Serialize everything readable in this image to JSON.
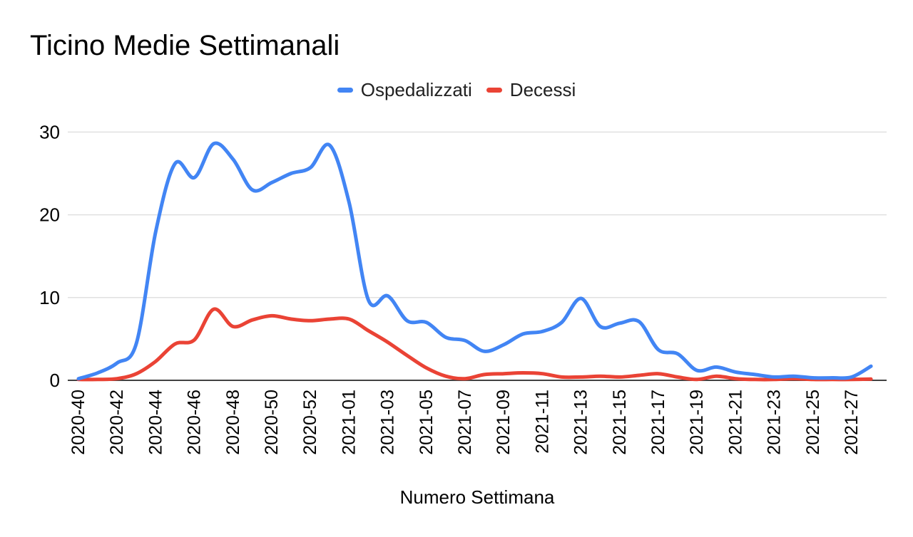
{
  "title": "Ticino Medie Settimanali",
  "x_axis_title": "Numero Settimana",
  "legend": [
    {
      "label": "Ospedalizzati",
      "color": "#4285F4"
    },
    {
      "label": "Decessi",
      "color": "#EA4335"
    }
  ],
  "colors": {
    "background": "#ffffff",
    "gridline": "#e0e0e0",
    "axis_line": "#424242",
    "text": "#000000"
  },
  "chart_data": {
    "type": "line",
    "smooth": true,
    "title": "Ticino Medie Settimanali",
    "xlabel": "Numero Settimana",
    "ylabel": "",
    "ylim": [
      0,
      30
    ],
    "grid": true,
    "legend_position": "top",
    "yticks": [
      0,
      10,
      20,
      30
    ],
    "x_tick_labels": [
      "2020-40",
      "2020-42",
      "2020-44",
      "2020-46",
      "2020-48",
      "2020-50",
      "2020-52",
      "2021-01",
      "2021-03",
      "2021-05",
      "2021-07",
      "2021-09",
      "2021-11",
      "2021-13",
      "2021-15",
      "2021-17",
      "2021-19",
      "2021-21",
      "2021-23",
      "2021-25",
      "2021-27"
    ],
    "categories": [
      "2020-40",
      "2020-41",
      "2020-42",
      "2020-43",
      "2020-44",
      "2020-45",
      "2020-46",
      "2020-47",
      "2020-48",
      "2020-49",
      "2020-50",
      "2020-51",
      "2020-52",
      "2020-53",
      "2021-01",
      "2021-02",
      "2021-03",
      "2021-04",
      "2021-05",
      "2021-06",
      "2021-07",
      "2021-08",
      "2021-09",
      "2021-10",
      "2021-11",
      "2021-12",
      "2021-13",
      "2021-14",
      "2021-15",
      "2021-16",
      "2021-17",
      "2021-18",
      "2021-19",
      "2021-20",
      "2021-21",
      "2021-22",
      "2021-23",
      "2021-24",
      "2021-25",
      "2021-26",
      "2021-27",
      "2021-28"
    ],
    "series": [
      {
        "name": "Ospedalizzati",
        "color": "#4285F4",
        "values": [
          0.2,
          0.9,
          2.1,
          4.5,
          18.0,
          26.2,
          24.5,
          28.6,
          26.7,
          23.0,
          23.9,
          25.0,
          25.7,
          28.4,
          21.5,
          9.7,
          10.2,
          7.2,
          7.0,
          5.2,
          4.8,
          3.5,
          4.3,
          5.6,
          5.9,
          7.0,
          9.9,
          6.5,
          6.9,
          7.1,
          3.7,
          3.2,
          1.2,
          1.6,
          1.0,
          0.7,
          0.4,
          0.5,
          0.3,
          0.3,
          0.4,
          1.7
        ]
      },
      {
        "name": "Decessi",
        "color": "#EA4335",
        "values": [
          0.1,
          0.1,
          0.2,
          0.8,
          2.3,
          4.4,
          4.9,
          8.6,
          6.5,
          7.3,
          7.8,
          7.4,
          7.2,
          7.4,
          7.4,
          6.0,
          4.6,
          3.0,
          1.5,
          0.5,
          0.2,
          0.7,
          0.8,
          0.9,
          0.8,
          0.4,
          0.4,
          0.5,
          0.4,
          0.6,
          0.8,
          0.4,
          0.1,
          0.5,
          0.2,
          0.1,
          0.1,
          0.2,
          0.1,
          0.1,
          0.1,
          0.15
        ]
      }
    ]
  }
}
